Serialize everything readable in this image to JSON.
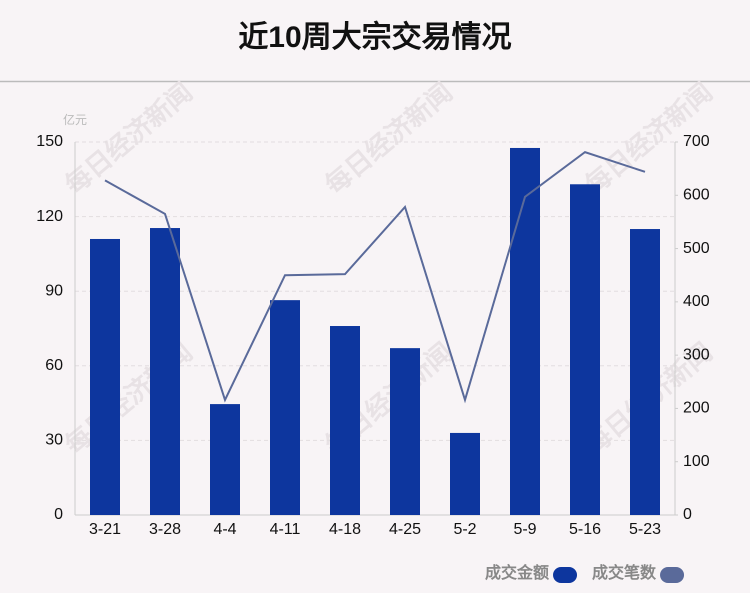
{
  "chart_data": {
    "type": "bar",
    "title": "近10周大宗交易情况",
    "y_unit": "亿元",
    "watermark": "每日经济新闻",
    "categories": [
      "3-21",
      "3-28",
      "4-4",
      "4-11",
      "4-18",
      "4-25",
      "5-2",
      "5-9",
      "5-16",
      "5-23"
    ],
    "series": [
      {
        "name": "成交金额",
        "color": "#0d369e",
        "type": "bar",
        "values": [
          111,
          115.4,
          44.6,
          86.4,
          76,
          67.1,
          33,
          147.6,
          133,
          115
        ]
      },
      {
        "name": "成交笔数",
        "color": "#5a6a9a",
        "type": "line",
        "axis": "y2",
        "values": [
          628,
          565,
          216,
          450,
          452,
          578,
          216,
          597,
          681,
          644
        ]
      }
    ],
    "ylim": [
      0,
      150
    ],
    "yticks": [
      0,
      30,
      60,
      90,
      120,
      150
    ],
    "y2lim": [
      0,
      700
    ],
    "y2ticks": [
      0,
      100,
      200,
      300,
      400,
      500,
      600,
      700
    ],
    "grid": true
  }
}
